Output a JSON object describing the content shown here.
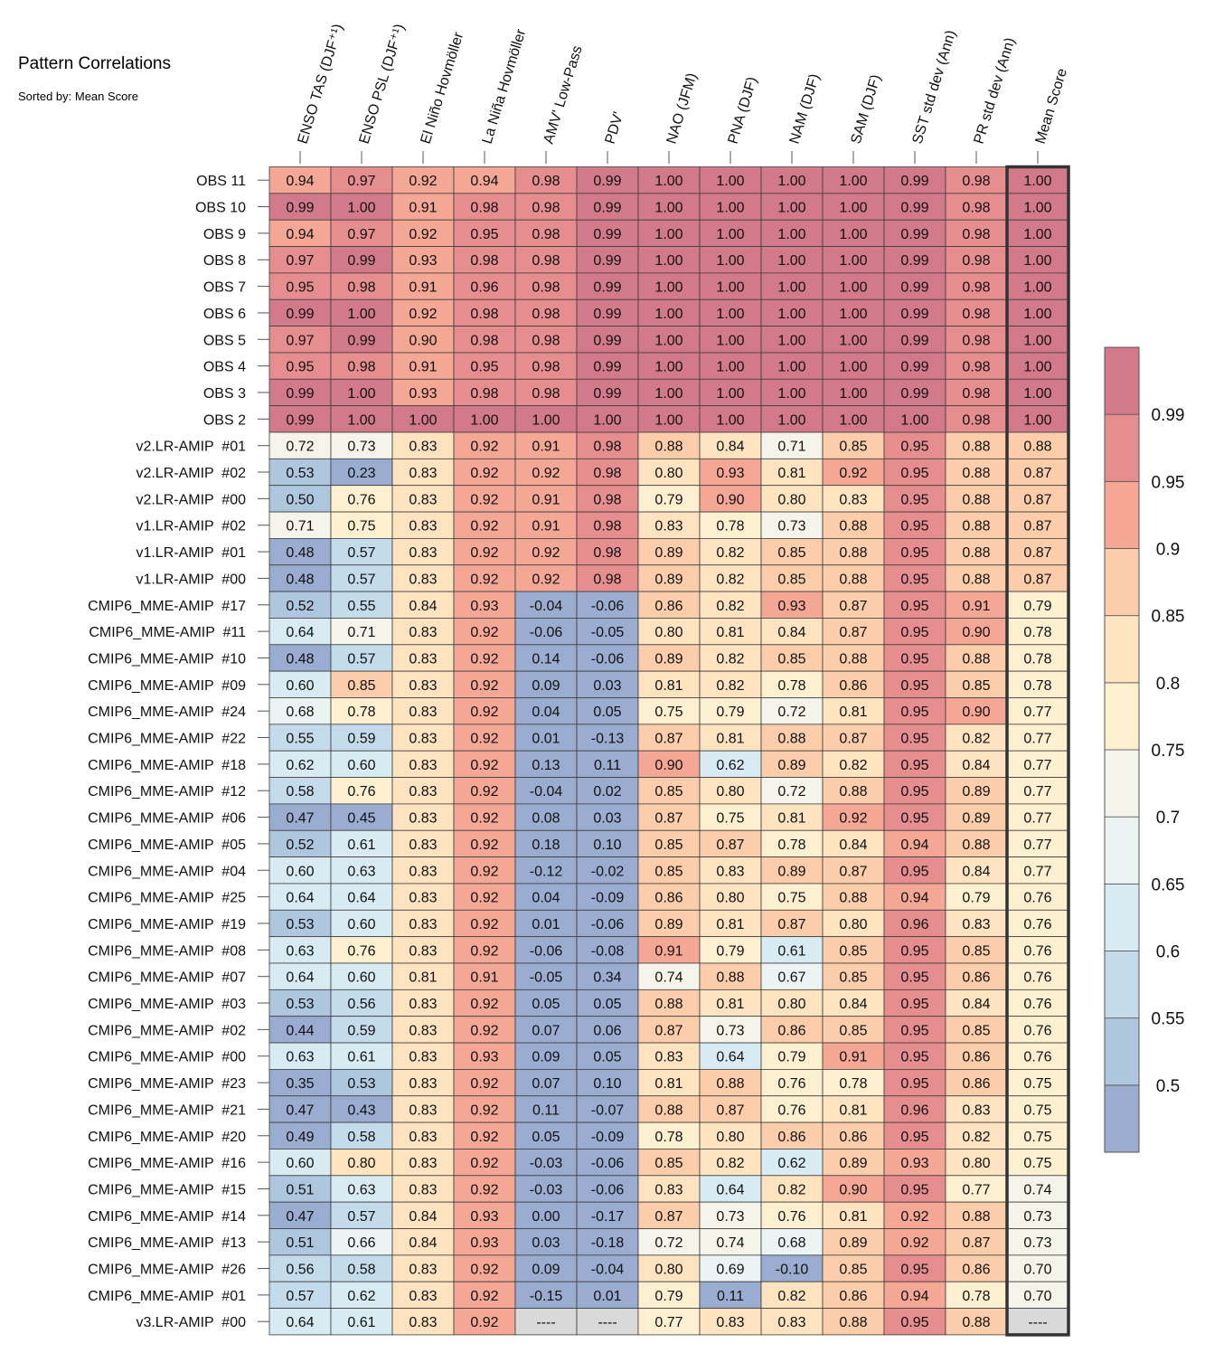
{
  "title": "Pattern Correlations",
  "subtitle": "Sorted by: Mean Score",
  "chart_data": {
    "type": "heatmap",
    "columns": [
      "ENSO TAS (DJF⁺¹)",
      "ENSO PSL (DJF⁺¹)",
      "El Niño Hovmöller",
      "La Niña Hovmöller",
      "AMV' Low-Pass",
      "PDV'",
      "NAO (JFM)",
      "PNA (DJF)",
      "NAM (DJF)",
      "SAM (DJF)",
      "SST std dev (Ann)",
      "PR std dev (Ann)",
      "Mean Score"
    ],
    "rows": [
      {
        "label": "OBS 11",
        "values": [
          0.94,
          0.97,
          0.92,
          0.94,
          0.98,
          0.99,
          1.0,
          1.0,
          1.0,
          1.0,
          0.99,
          0.98,
          1.0
        ]
      },
      {
        "label": "OBS 10",
        "values": [
          0.99,
          1.0,
          0.91,
          0.98,
          0.98,
          0.99,
          1.0,
          1.0,
          1.0,
          1.0,
          0.99,
          0.98,
          1.0
        ]
      },
      {
        "label": "OBS 9",
        "values": [
          0.94,
          0.97,
          0.92,
          0.95,
          0.98,
          0.99,
          1.0,
          1.0,
          1.0,
          1.0,
          0.99,
          0.98,
          1.0
        ]
      },
      {
        "label": "OBS 8",
        "values": [
          0.97,
          0.99,
          0.93,
          0.98,
          0.98,
          0.99,
          1.0,
          1.0,
          1.0,
          1.0,
          0.99,
          0.98,
          1.0
        ]
      },
      {
        "label": "OBS 7",
        "values": [
          0.95,
          0.98,
          0.91,
          0.96,
          0.98,
          0.99,
          1.0,
          1.0,
          1.0,
          1.0,
          0.99,
          0.98,
          1.0
        ]
      },
      {
        "label": "OBS 6",
        "values": [
          0.99,
          1.0,
          0.92,
          0.98,
          0.98,
          0.99,
          1.0,
          1.0,
          1.0,
          1.0,
          0.99,
          0.98,
          1.0
        ]
      },
      {
        "label": "OBS 5",
        "values": [
          0.97,
          0.99,
          0.9,
          0.98,
          0.98,
          0.99,
          1.0,
          1.0,
          1.0,
          1.0,
          0.99,
          0.98,
          1.0
        ]
      },
      {
        "label": "OBS 4",
        "values": [
          0.95,
          0.98,
          0.91,
          0.95,
          0.98,
          0.99,
          1.0,
          1.0,
          1.0,
          1.0,
          0.99,
          0.98,
          1.0
        ]
      },
      {
        "label": "OBS 3",
        "values": [
          0.99,
          1.0,
          0.93,
          0.98,
          0.98,
          0.99,
          1.0,
          1.0,
          1.0,
          1.0,
          0.99,
          0.98,
          1.0
        ]
      },
      {
        "label": "OBS 2",
        "values": [
          0.99,
          1.0,
          1.0,
          1.0,
          1.0,
          1.0,
          1.0,
          1.0,
          1.0,
          1.0,
          1.0,
          0.98,
          1.0
        ]
      },
      {
        "label": "v2.LR-AMIP  #01",
        "values": [
          0.72,
          0.73,
          0.83,
          0.92,
          0.91,
          0.98,
          0.88,
          0.84,
          0.71,
          0.85,
          0.95,
          0.88,
          0.88
        ]
      },
      {
        "label": "v2.LR-AMIP  #02",
        "values": [
          0.53,
          0.23,
          0.83,
          0.92,
          0.92,
          0.98,
          0.8,
          0.93,
          0.81,
          0.92,
          0.95,
          0.88,
          0.87
        ]
      },
      {
        "label": "v2.LR-AMIP  #00",
        "values": [
          0.5,
          0.76,
          0.83,
          0.92,
          0.91,
          0.98,
          0.79,
          0.9,
          0.8,
          0.83,
          0.95,
          0.88,
          0.87
        ]
      },
      {
        "label": "v1.LR-AMIP  #02",
        "values": [
          0.71,
          0.75,
          0.83,
          0.92,
          0.91,
          0.98,
          0.83,
          0.78,
          0.73,
          0.88,
          0.95,
          0.88,
          0.87
        ]
      },
      {
        "label": "v1.LR-AMIP  #01",
        "values": [
          0.48,
          0.57,
          0.83,
          0.92,
          0.92,
          0.98,
          0.89,
          0.82,
          0.85,
          0.88,
          0.95,
          0.88,
          0.87
        ]
      },
      {
        "label": "v1.LR-AMIP  #00",
        "values": [
          0.48,
          0.57,
          0.83,
          0.92,
          0.92,
          0.98,
          0.89,
          0.82,
          0.85,
          0.88,
          0.95,
          0.88,
          0.87
        ]
      },
      {
        "label": "CMIP6_MME-AMIP  #17",
        "values": [
          0.52,
          0.55,
          0.84,
          0.93,
          -0.04,
          -0.06,
          0.86,
          0.82,
          0.93,
          0.87,
          0.95,
          0.91,
          0.79
        ]
      },
      {
        "label": "CMIP6_MME-AMIP  #11",
        "values": [
          0.64,
          0.71,
          0.83,
          0.92,
          -0.06,
          -0.05,
          0.8,
          0.81,
          0.84,
          0.87,
          0.95,
          0.9,
          0.78
        ]
      },
      {
        "label": "CMIP6_MME-AMIP  #10",
        "values": [
          0.48,
          0.57,
          0.83,
          0.92,
          0.14,
          -0.06,
          0.89,
          0.82,
          0.85,
          0.88,
          0.95,
          0.88,
          0.78
        ]
      },
      {
        "label": "CMIP6_MME-AMIP  #09",
        "values": [
          0.6,
          0.85,
          0.83,
          0.92,
          0.09,
          0.03,
          0.81,
          0.82,
          0.78,
          0.86,
          0.95,
          0.85,
          0.78
        ]
      },
      {
        "label": "CMIP6_MME-AMIP  #24",
        "values": [
          0.68,
          0.78,
          0.83,
          0.92,
          0.04,
          0.05,
          0.75,
          0.79,
          0.72,
          0.81,
          0.95,
          0.9,
          0.77
        ]
      },
      {
        "label": "CMIP6_MME-AMIP  #22",
        "values": [
          0.55,
          0.59,
          0.83,
          0.92,
          0.01,
          -0.13,
          0.87,
          0.81,
          0.88,
          0.87,
          0.95,
          0.82,
          0.77
        ]
      },
      {
        "label": "CMIP6_MME-AMIP  #18",
        "values": [
          0.62,
          0.6,
          0.83,
          0.92,
          0.13,
          0.11,
          0.9,
          0.62,
          0.89,
          0.82,
          0.95,
          0.84,
          0.77
        ]
      },
      {
        "label": "CMIP6_MME-AMIP  #12",
        "values": [
          0.58,
          0.76,
          0.83,
          0.92,
          -0.04,
          0.02,
          0.85,
          0.8,
          0.72,
          0.88,
          0.95,
          0.89,
          0.77
        ]
      },
      {
        "label": "CMIP6_MME-AMIP  #06",
        "values": [
          0.47,
          0.45,
          0.83,
          0.92,
          0.08,
          0.03,
          0.87,
          0.75,
          0.81,
          0.92,
          0.95,
          0.89,
          0.77
        ]
      },
      {
        "label": "CMIP6_MME-AMIP  #05",
        "values": [
          0.52,
          0.61,
          0.83,
          0.92,
          0.18,
          0.1,
          0.85,
          0.87,
          0.78,
          0.84,
          0.94,
          0.88,
          0.77
        ]
      },
      {
        "label": "CMIP6_MME-AMIP  #04",
        "values": [
          0.6,
          0.63,
          0.83,
          0.92,
          -0.12,
          -0.02,
          0.85,
          0.83,
          0.89,
          0.87,
          0.95,
          0.84,
          0.77
        ]
      },
      {
        "label": "CMIP6_MME-AMIP  #25",
        "values": [
          0.64,
          0.64,
          0.83,
          0.92,
          0.04,
          -0.09,
          0.86,
          0.8,
          0.75,
          0.88,
          0.94,
          0.79,
          0.76
        ]
      },
      {
        "label": "CMIP6_MME-AMIP  #19",
        "values": [
          0.53,
          0.6,
          0.83,
          0.92,
          0.01,
          -0.06,
          0.89,
          0.81,
          0.87,
          0.8,
          0.96,
          0.83,
          0.76
        ]
      },
      {
        "label": "CMIP6_MME-AMIP  #08",
        "values": [
          0.63,
          0.76,
          0.83,
          0.92,
          -0.06,
          -0.08,
          0.91,
          0.79,
          0.61,
          0.85,
          0.95,
          0.85,
          0.76
        ]
      },
      {
        "label": "CMIP6_MME-AMIP  #07",
        "values": [
          0.64,
          0.6,
          0.81,
          0.91,
          -0.05,
          0.34,
          0.74,
          0.88,
          0.67,
          0.85,
          0.95,
          0.86,
          0.76
        ]
      },
      {
        "label": "CMIP6_MME-AMIP  #03",
        "values": [
          0.53,
          0.56,
          0.83,
          0.92,
          0.05,
          0.05,
          0.88,
          0.81,
          0.8,
          0.84,
          0.95,
          0.84,
          0.76
        ]
      },
      {
        "label": "CMIP6_MME-AMIP  #02",
        "values": [
          0.44,
          0.59,
          0.83,
          0.92,
          0.07,
          0.06,
          0.87,
          0.73,
          0.86,
          0.85,
          0.95,
          0.85,
          0.76
        ]
      },
      {
        "label": "CMIP6_MME-AMIP  #00",
        "values": [
          0.63,
          0.61,
          0.83,
          0.93,
          0.09,
          0.05,
          0.83,
          0.64,
          0.79,
          0.91,
          0.95,
          0.86,
          0.76
        ]
      },
      {
        "label": "CMIP6_MME-AMIP  #23",
        "values": [
          0.35,
          0.53,
          0.83,
          0.92,
          0.07,
          0.1,
          0.81,
          0.88,
          0.76,
          0.78,
          0.95,
          0.86,
          0.75
        ]
      },
      {
        "label": "CMIP6_MME-AMIP  #21",
        "values": [
          0.47,
          0.43,
          0.83,
          0.92,
          0.11,
          -0.07,
          0.88,
          0.87,
          0.76,
          0.81,
          0.96,
          0.83,
          0.75
        ]
      },
      {
        "label": "CMIP6_MME-AMIP  #20",
        "values": [
          0.49,
          0.58,
          0.83,
          0.92,
          0.05,
          -0.09,
          0.78,
          0.8,
          0.86,
          0.86,
          0.95,
          0.82,
          0.75
        ]
      },
      {
        "label": "CMIP6_MME-AMIP  #16",
        "values": [
          0.6,
          0.8,
          0.83,
          0.92,
          -0.03,
          -0.06,
          0.85,
          0.82,
          0.62,
          0.89,
          0.93,
          0.8,
          0.75
        ]
      },
      {
        "label": "CMIP6_MME-AMIP  #15",
        "values": [
          0.51,
          0.63,
          0.83,
          0.92,
          -0.03,
          -0.06,
          0.83,
          0.64,
          0.82,
          0.9,
          0.95,
          0.77,
          0.74
        ]
      },
      {
        "label": "CMIP6_MME-AMIP  #14",
        "values": [
          0.47,
          0.57,
          0.84,
          0.93,
          -0.0,
          -0.17,
          0.87,
          0.73,
          0.76,
          0.81,
          0.92,
          0.88,
          0.73
        ]
      },
      {
        "label": "CMIP6_MME-AMIP  #13",
        "values": [
          0.51,
          0.66,
          0.84,
          0.93,
          0.03,
          -0.18,
          0.72,
          0.74,
          0.68,
          0.89,
          0.92,
          0.87,
          0.73
        ]
      },
      {
        "label": "CMIP6_MME-AMIP  #26",
        "values": [
          0.56,
          0.58,
          0.83,
          0.92,
          0.09,
          -0.04,
          0.8,
          0.69,
          -0.1,
          0.85,
          0.95,
          0.86,
          0.7
        ]
      },
      {
        "label": "CMIP6_MME-AMIP  #01",
        "values": [
          0.57,
          0.62,
          0.83,
          0.92,
          -0.15,
          0.01,
          0.79,
          0.11,
          0.82,
          0.86,
          0.94,
          0.78,
          0.7
        ]
      },
      {
        "label": "v3.LR-AMIP  #00",
        "values": [
          0.64,
          0.61,
          0.83,
          0.92,
          null,
          null,
          0.77,
          0.83,
          0.83,
          0.88,
          0.95,
          0.88,
          null
        ]
      }
    ],
    "missing_label": "----",
    "colorbar": {
      "tick_labels": [
        "0.99",
        "0.95",
        "0.9",
        "0.85",
        "0.8",
        "0.75",
        "0.7",
        "0.65",
        "0.6",
        "0.55",
        "0.5"
      ],
      "tick_values": [
        0.99,
        0.95,
        0.9,
        0.85,
        0.8,
        0.75,
        0.7,
        0.65,
        0.6,
        0.55,
        0.5
      ],
      "levels": [
        0.5,
        0.55,
        0.6,
        0.65,
        0.7,
        0.75,
        0.8,
        0.85,
        0.9,
        0.95,
        0.99
      ],
      "colors": [
        "#9aaccf",
        "#afc6df",
        "#c3dbea",
        "#d9ebf2",
        "#ebf4f3",
        "#f5f4ea",
        "#fdf0d0",
        "#fde3c0",
        "#fccdaa",
        "#f3a794",
        "#e58d8f",
        "#d37a8a"
      ],
      "missing_color": "#d9d9d9"
    },
    "highlight_column": "Mean Score"
  }
}
